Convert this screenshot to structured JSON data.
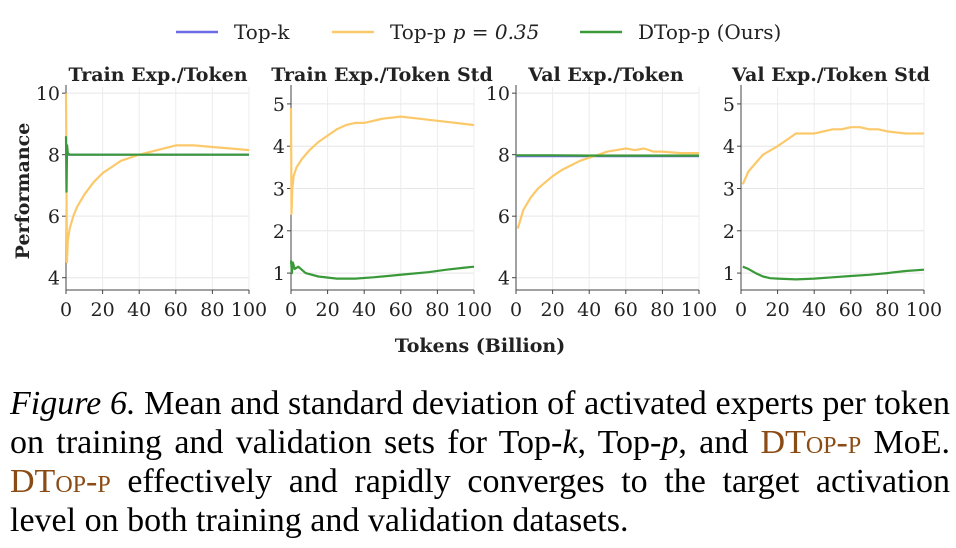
{
  "chart_data": [
    {
      "type": "line",
      "title": "Train Exp./Token",
      "ylabel": "Performance",
      "xlabel": "",
      "xlim": [
        0,
        100
      ],
      "ylim": [
        3.6,
        10.2
      ],
      "xticks": [
        0,
        20,
        40,
        60,
        80,
        100
      ],
      "yticks": [
        4,
        6,
        8,
        10
      ],
      "series": [
        {
          "name": "Top-k",
          "x": [
            0,
            100
          ],
          "y": [
            8.0,
            8.0
          ]
        },
        {
          "name": "Top-p p = 0.35",
          "x": [
            0,
            0.5,
            1,
            2,
            4,
            6,
            10,
            15,
            20,
            25,
            30,
            40,
            50,
            60,
            70,
            80,
            90,
            100
          ],
          "y": [
            10.0,
            4.5,
            5.2,
            5.6,
            6.0,
            6.3,
            6.7,
            7.1,
            7.4,
            7.6,
            7.8,
            8.0,
            8.15,
            8.3,
            8.3,
            8.25,
            8.2,
            8.15
          ]
        },
        {
          "name": "DTop-p (Ours)",
          "x": [
            0,
            0.3,
            0.6,
            1,
            2,
            5,
            20,
            40,
            60,
            80,
            100
          ],
          "y": [
            8.6,
            6.8,
            8.3,
            8.05,
            8.0,
            8.0,
            8.0,
            8.0,
            8.0,
            8.0,
            8.0
          ]
        }
      ]
    },
    {
      "type": "line",
      "title": "Train Exp./Token Std",
      "xlabel": "",
      "ylabel": "",
      "xlim": [
        0,
        100
      ],
      "ylim": [
        0.6,
        5.4
      ],
      "xticks": [
        0,
        20,
        40,
        60,
        80,
        100
      ],
      "yticks": [
        1,
        2,
        3,
        4,
        5
      ],
      "series": [
        {
          "name": "Top-p p = 0.35",
          "x": [
            0,
            0.3,
            0.7,
            1.5,
            3,
            6,
            10,
            15,
            20,
            25,
            30,
            35,
            40,
            50,
            60,
            70,
            80,
            90,
            100
          ],
          "y": [
            4.9,
            2.4,
            3.0,
            3.3,
            3.5,
            3.7,
            3.9,
            4.1,
            4.25,
            4.4,
            4.5,
            4.55,
            4.55,
            4.65,
            4.7,
            4.65,
            4.6,
            4.55,
            4.5
          ]
        },
        {
          "name": "DTop-p (Ours)",
          "x": [
            0,
            0.5,
            1,
            2,
            4,
            8,
            15,
            25,
            35,
            45,
            55,
            65,
            75,
            85,
            95,
            100
          ],
          "y": [
            1.3,
            1.0,
            1.25,
            1.1,
            1.15,
            1.0,
            0.92,
            0.87,
            0.87,
            0.9,
            0.94,
            0.98,
            1.02,
            1.08,
            1.13,
            1.15
          ]
        }
      ]
    },
    {
      "type": "line",
      "title": "Val Exp./Token",
      "xlabel": "",
      "ylabel": "",
      "xlim": [
        0,
        100
      ],
      "ylim": [
        3.6,
        10.2
      ],
      "xticks": [
        0,
        20,
        40,
        60,
        80,
        100
      ],
      "yticks": [
        4,
        6,
        8,
        10
      ],
      "series": [
        {
          "name": "Top-k",
          "x": [
            0,
            100
          ],
          "y": [
            7.95,
            7.95
          ]
        },
        {
          "name": "Top-p p = 0.35",
          "x": [
            1,
            4,
            8,
            12,
            16,
            20,
            25,
            30,
            35,
            40,
            45,
            50,
            55,
            60,
            65,
            70,
            75,
            80,
            90,
            100
          ],
          "y": [
            5.6,
            6.2,
            6.6,
            6.9,
            7.1,
            7.3,
            7.5,
            7.65,
            7.8,
            7.9,
            8.0,
            8.1,
            8.15,
            8.2,
            8.15,
            8.2,
            8.1,
            8.1,
            8.05,
            8.05
          ]
        },
        {
          "name": "DTop-p (Ours)",
          "x": [
            0,
            20,
            40,
            60,
            80,
            100
          ],
          "y": [
            7.98,
            7.98,
            7.97,
            7.97,
            7.97,
            7.97
          ]
        }
      ]
    },
    {
      "type": "line",
      "title": "Val Exp./Token Std",
      "xlabel": "",
      "ylabel": "",
      "xlim": [
        0,
        100
      ],
      "ylim": [
        0.6,
        5.4
      ],
      "xticks": [
        0,
        20,
        40,
        60,
        80,
        100
      ],
      "yticks": [
        1,
        2,
        3,
        4,
        5
      ],
      "series": [
        {
          "name": "Top-p p = 0.35",
          "x": [
            1,
            4,
            8,
            12,
            16,
            20,
            25,
            30,
            35,
            40,
            45,
            50,
            55,
            60,
            65,
            70,
            75,
            80,
            90,
            100
          ],
          "y": [
            3.1,
            3.4,
            3.6,
            3.8,
            3.9,
            4.0,
            4.15,
            4.3,
            4.3,
            4.3,
            4.35,
            4.4,
            4.4,
            4.45,
            4.45,
            4.4,
            4.4,
            4.35,
            4.3,
            4.3
          ]
        },
        {
          "name": "DTop-p (Ours)",
          "x": [
            1,
            4,
            8,
            12,
            16,
            20,
            25,
            30,
            35,
            40,
            50,
            60,
            70,
            80,
            90,
            100
          ],
          "y": [
            1.15,
            1.1,
            1.0,
            0.92,
            0.88,
            0.87,
            0.86,
            0.85,
            0.86,
            0.87,
            0.9,
            0.93,
            0.96,
            1.0,
            1.05,
            1.08
          ]
        }
      ]
    }
  ],
  "legend": {
    "placement": "top-center",
    "entries": [
      {
        "label": "Top-k",
        "color": "#6b6be6"
      },
      {
        "label": "Top-p",
        "math": "p = 0.35",
        "color": "#fcc96a"
      },
      {
        "label": "DTop-p (Ours)",
        "color": "#3a9a3a"
      }
    ]
  },
  "shared_xlabel": "Tokens (Billion)",
  "colors": {
    "Top-k": "#6b6be6",
    "Top-p p = 0.35": "#fcc96a",
    "DTop-p (Ours)": "#3a9a3a",
    "brand": "#8a4b14"
  },
  "caption": {
    "label": "Figure 6.",
    "t1": " Mean and standard deviation of activated experts per token on training and validation sets for Top-",
    "k": "k",
    "t2": ", Top-",
    "p": "p",
    "t3": ", and ",
    "brand1": "DTop-p",
    "t4": " MoE. ",
    "brand2": "DTop-p",
    "t5": " effectively and rapidly converges to the target activation level on both training and validation datasets."
  }
}
